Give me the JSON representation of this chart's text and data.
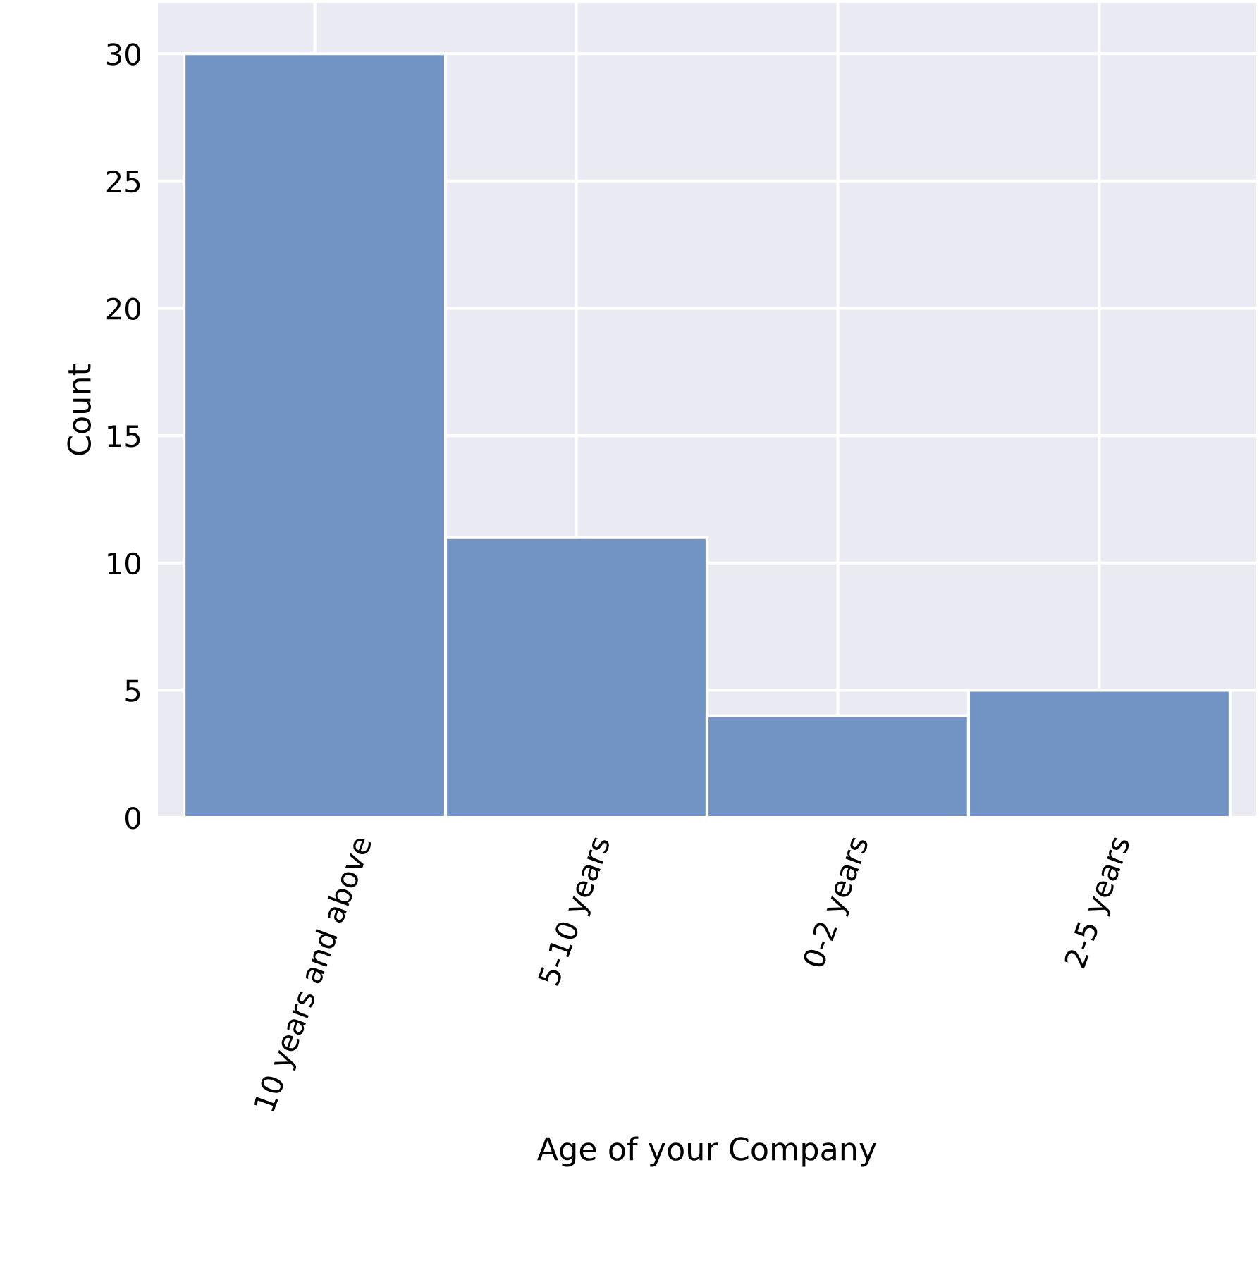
{
  "chart_data": {
    "type": "bar",
    "xlabel": "Age of your Company",
    "ylabel": "Count",
    "categories": [
      "10 years and above",
      "5-10 years",
      "0-2 years",
      "2-5 years"
    ],
    "values": [
      30,
      11,
      4,
      5
    ],
    "color": "#7294c4",
    "ylim": [
      0,
      32
    ],
    "yticks": [
      0,
      5,
      10,
      15,
      20,
      25,
      30
    ],
    "grid": true
  }
}
